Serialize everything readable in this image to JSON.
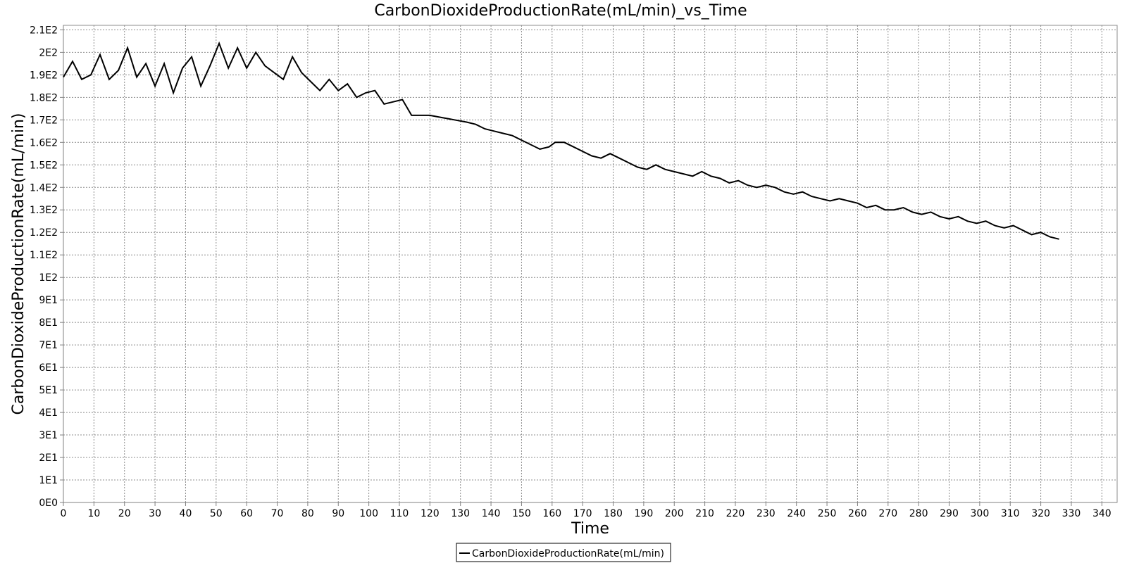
{
  "chart_data": {
    "type": "line",
    "title": "CarbonDioxideProductionRate(mL/min)_vs_Time",
    "xlabel": "Time",
    "ylabel": "CarbonDioxideProductionRate(mL/min)",
    "xlim": [
      0,
      345
    ],
    "ylim": [
      0,
      212
    ],
    "x_ticks": [
      0,
      10,
      20,
      30,
      40,
      50,
      60,
      70,
      80,
      90,
      100,
      110,
      120,
      130,
      140,
      150,
      160,
      170,
      180,
      190,
      200,
      210,
      220,
      230,
      240,
      250,
      260,
      270,
      280,
      290,
      300,
      310,
      320,
      330,
      340
    ],
    "y_ticks": [
      {
        "value": 0,
        "label": "0E0"
      },
      {
        "value": 10,
        "label": "1E1"
      },
      {
        "value": 20,
        "label": "2E1"
      },
      {
        "value": 30,
        "label": "3E1"
      },
      {
        "value": 40,
        "label": "4E1"
      },
      {
        "value": 50,
        "label": "5E1"
      },
      {
        "value": 60,
        "label": "6E1"
      },
      {
        "value": 70,
        "label": "7E1"
      },
      {
        "value": 80,
        "label": "8E1"
      },
      {
        "value": 90,
        "label": "9E1"
      },
      {
        "value": 100,
        "label": "1E2"
      },
      {
        "value": 110,
        "label": "1.1E2"
      },
      {
        "value": 120,
        "label": "1.2E2"
      },
      {
        "value": 130,
        "label": "1.3E2"
      },
      {
        "value": 140,
        "label": "1.4E2"
      },
      {
        "value": 150,
        "label": "1.5E2"
      },
      {
        "value": 160,
        "label": "1.6E2"
      },
      {
        "value": 170,
        "label": "1.7E2"
      },
      {
        "value": 180,
        "label": "1.8E2"
      },
      {
        "value": 190,
        "label": "1.9E2"
      },
      {
        "value": 200,
        "label": "2E2"
      },
      {
        "value": 210,
        "label": "2.1E2"
      }
    ],
    "grid": true,
    "legend_position": "bottom-center",
    "series": [
      {
        "name": "CarbonDioxideProductionRate(mL/min)",
        "color": "#000000",
        "x": [
          0,
          3,
          6,
          9,
          12,
          15,
          18,
          21,
          24,
          27,
          30,
          33,
          36,
          39,
          42,
          45,
          48,
          51,
          54,
          57,
          60,
          63,
          66,
          69,
          72,
          75,
          78,
          81,
          84,
          87,
          90,
          93,
          96,
          99,
          102,
          105,
          108,
          111,
          114,
          117,
          120,
          124,
          128,
          132,
          135,
          138,
          141,
          144,
          147,
          150,
          153,
          156,
          159,
          161,
          164,
          167,
          170,
          173,
          176,
          179,
          182,
          185,
          188,
          191,
          194,
          197,
          200,
          203,
          206,
          209,
          212,
          215,
          218,
          221,
          224,
          227,
          230,
          233,
          236,
          239,
          242,
          245,
          248,
          251,
          254,
          257,
          260,
          263,
          266,
          269,
          272,
          275,
          278,
          281,
          284,
          287,
          290,
          293,
          296,
          299,
          302,
          305,
          308,
          311,
          314,
          317,
          320,
          323,
          326
        ],
        "y": [
          189,
          196,
          188,
          190,
          199,
          188,
          192,
          202,
          189,
          195,
          185,
          195,
          182,
          193,
          198,
          185,
          194,
          204,
          193,
          202,
          193,
          200,
          194,
          191,
          188,
          198,
          191,
          187,
          183,
          188,
          183,
          186,
          180,
          182,
          183,
          177,
          178,
          179,
          172,
          172,
          172,
          171,
          170,
          169,
          168,
          166,
          165,
          164,
          163,
          161,
          159,
          157,
          158,
          160,
          160,
          158,
          156,
          154,
          153,
          155,
          153,
          151,
          149,
          148,
          150,
          148,
          147,
          146,
          145,
          147,
          145,
          144,
          142,
          143,
          141,
          140,
          141,
          140,
          138,
          137,
          138,
          136,
          135,
          134,
          135,
          134,
          133,
          131,
          132,
          130,
          130,
          131,
          129,
          128,
          129,
          127,
          126,
          127,
          125,
          124,
          125,
          123,
          122,
          123,
          121,
          119,
          120,
          118,
          117
        ]
      }
    ]
  }
}
